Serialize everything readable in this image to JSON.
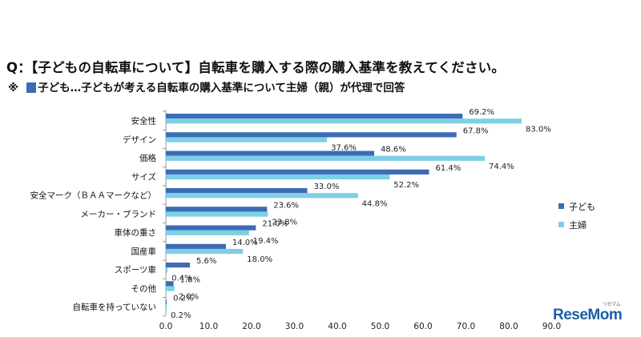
{
  "header": {
    "title": "Q：【子どもの自転車について】自転車を購入する際の購入基準を教えてください。",
    "note_mark": "※",
    "note_text": "子ども…子どもが考える自転車の購入基準について主婦（親）が代理で回答"
  },
  "chart_data": {
    "type": "bar",
    "orientation": "horizontal",
    "categories": [
      "安全性",
      "デザイン",
      "価格",
      "サイズ",
      "安全マーク（ＢＡＡマークなど）",
      "メーカー・ブランド",
      "車体の重さ",
      "国産車",
      "スポーツ車",
      "その他",
      "自転車を持っていない"
    ],
    "series": [
      {
        "name": "子ども",
        "color": "#3c6cb4",
        "values": [
          69.2,
          67.8,
          48.6,
          61.4,
          33.0,
          23.6,
          21.0,
          14.0,
          5.6,
          1.8,
          0.2
        ]
      },
      {
        "name": "主婦",
        "color": "#7ecfe6",
        "values": [
          83.0,
          37.6,
          74.4,
          52.2,
          44.8,
          23.8,
          19.4,
          18.0,
          0.4,
          2.0,
          0.2
        ]
      }
    ],
    "xlim": [
      0,
      90
    ],
    "xticks": [
      "0.0",
      "10.0",
      "20.0",
      "30.0",
      "40.0",
      "50.0",
      "60.0",
      "70.0",
      "80.0",
      "90.0"
    ],
    "value_suffix": "%",
    "legend_position": "right"
  },
  "brand": {
    "logo_text": "ReseMom",
    "logo_ruby": "リセマム"
  }
}
